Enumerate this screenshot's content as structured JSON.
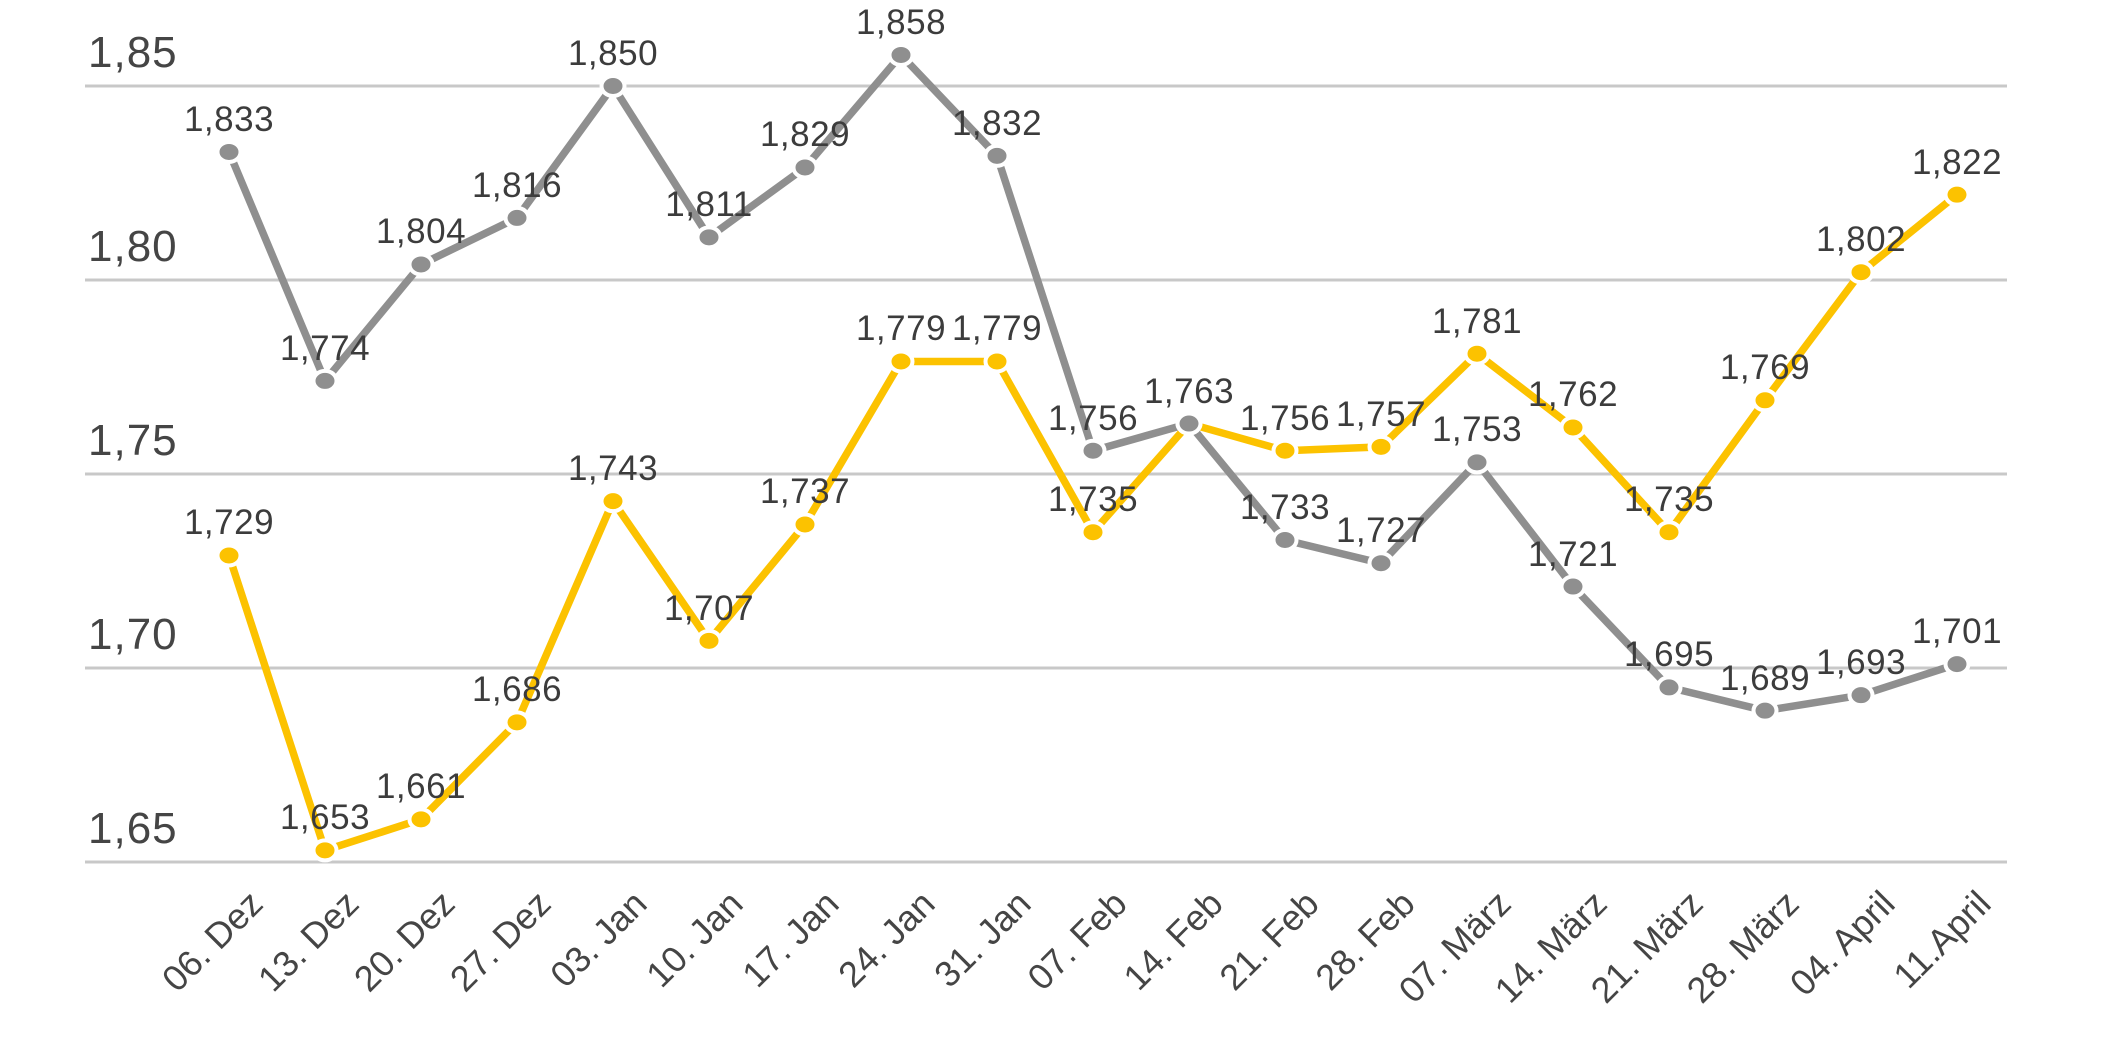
{
  "chart_data": {
    "type": "line",
    "title": "",
    "legend": "none",
    "grid": true,
    "number_format": "comma-decimal",
    "categories": [
      "06. Dez",
      "13. Dez",
      "20. Dez",
      "27. Dez",
      "03. Jan",
      "10. Jan",
      "17. Jan",
      "24. Jan",
      "31. Jan",
      "07. Feb",
      "14. Feb",
      "21. Feb",
      "28. Feb",
      "07. März",
      "14. März",
      "21. März",
      "28. März",
      "04. April",
      "11.April"
    ],
    "y_axis": {
      "ticks": [
        "1,85",
        "1,80",
        "1,75",
        "1,70",
        "1,65"
      ],
      "tick_values": [
        1.85,
        1.8,
        1.75,
        1.7,
        1.65
      ],
      "min": 1.65,
      "max": 1.85
    },
    "series": [
      {
        "name": "yellow-series",
        "color": "#FCC200",
        "values": [
          1.729,
          1.653,
          1.661,
          1.686,
          1.743,
          1.707,
          1.737,
          1.779,
          1.779,
          1.735,
          1.763,
          1.756,
          1.757,
          1.781,
          1.762,
          1.735,
          1.769,
          1.802,
          1.822
        ],
        "labels": [
          "1,729",
          "1,653",
          "1,661",
          "1,686",
          "1,743",
          "1,707",
          "1,737",
          "1,779",
          "1,779",
          "1,735",
          "",
          "1,756",
          "1,757",
          "1,781",
          "1,762",
          "1,735",
          "1,769",
          "1,802",
          "1,822"
        ]
      },
      {
        "name": "gray-series",
        "color": "#8F8F8F",
        "values": [
          1.833,
          1.774,
          1.804,
          1.816,
          1.85,
          1.811,
          1.829,
          1.858,
          1.832,
          1.756,
          1.763,
          1.733,
          1.727,
          1.753,
          1.721,
          1.695,
          1.689,
          1.693,
          1.701
        ],
        "labels": [
          "1,833",
          "1,774",
          "1,804",
          "1,816",
          "1,850",
          "1,811",
          "1,829",
          "1,858",
          "1,832",
          "1,756",
          "1,763",
          "1,733",
          "1,727",
          "1,753",
          "1,721",
          "1,695",
          "1,689",
          "1,693",
          "1,701"
        ]
      }
    ],
    "colors": {
      "gridline": "#C8C8C8",
      "value_label": "#3C3C3C",
      "axis_label": "#454545",
      "dot_ring": "#FFFFFF"
    }
  }
}
